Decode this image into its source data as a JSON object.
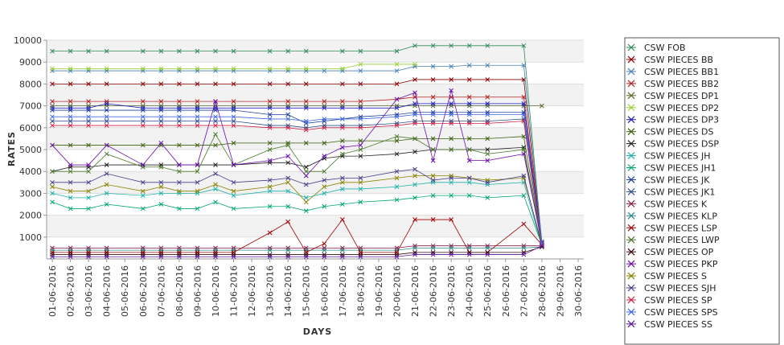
{
  "chart_data": {
    "type": "line",
    "title": "",
    "xlabel": "DAYS",
    "ylabel": "RATES",
    "ylim": [
      0,
      10000
    ],
    "yticks": [
      1000,
      2000,
      3000,
      4000,
      5000,
      6000,
      7000,
      8000,
      9000,
      10000
    ],
    "grid": "alternating horizontal bands",
    "legend": "right",
    "marker": "x",
    "x": [
      "01-06-2016",
      "02-06-2016",
      "03-06-2016",
      "04-06-2016",
      "05-06-2016",
      "06-06-2016",
      "07-06-2016",
      "08-06-2016",
      "09-06-2016",
      "10-06-2016",
      "11-06-2016",
      "12-06-2016",
      "13-06-2016",
      "14-06-2016",
      "15-06-2016",
      "16-06-2016",
      "17-06-2016",
      "18-06-2016",
      "19-06-2016",
      "20-06-2016",
      "21-06-2016",
      "22-06-2016",
      "23-06-2016",
      "24-06-2016",
      "25-06-2016",
      "26-06-2016",
      "27-06-2016",
      "28-06-2016",
      "29-06-2016",
      "30-06-2016"
    ],
    "series": [
      {
        "name": "CSW FOB",
        "color": "#2e8b57",
        "values": [
          9500,
          9500,
          9500,
          9500,
          null,
          9500,
          9500,
          9500,
          9500,
          9500,
          9500,
          null,
          9500,
          9500,
          9500,
          null,
          9500,
          9500,
          null,
          9500,
          9750,
          9750,
          9750,
          9750,
          9750,
          null,
          9750,
          700,
          null,
          null
        ]
      },
      {
        "name": "CSW PIECES BB",
        "color": "#8b0000",
        "values": [
          8000,
          8000,
          8000,
          8000,
          null,
          8000,
          8000,
          8000,
          8000,
          8000,
          8000,
          null,
          8000,
          8000,
          8000,
          null,
          8000,
          8000,
          null,
          8000,
          8200,
          8200,
          8200,
          8200,
          8200,
          null,
          8200,
          650,
          null,
          null
        ]
      },
      {
        "name": "CSW PIECES BB1",
        "color": "#4682b4",
        "values": [
          8600,
          8600,
          8600,
          8600,
          null,
          8600,
          8600,
          8600,
          8600,
          8600,
          8600,
          null,
          8600,
          8600,
          8600,
          8600,
          8600,
          8600,
          null,
          8600,
          8800,
          8800,
          8800,
          8850,
          8850,
          null,
          8850,
          800,
          null,
          null
        ]
      },
      {
        "name": "CSW PIECES BB2",
        "color": "#b22222",
        "values": [
          7200,
          7200,
          7200,
          7200,
          null,
          7200,
          7200,
          7200,
          7200,
          7200,
          7200,
          null,
          7200,
          7200,
          7200,
          7200,
          7200,
          7200,
          null,
          7300,
          7400,
          7400,
          7400,
          7400,
          7400,
          null,
          7400,
          700,
          null,
          null
        ]
      },
      {
        "name": "CSW PIECES DP1",
        "color": "#556b2f",
        "values": [
          7000,
          7000,
          7000,
          7000,
          null,
          7000,
          7000,
          7000,
          7000,
          7000,
          7000,
          null,
          7000,
          7000,
          7000,
          7000,
          7000,
          7000,
          null,
          7000,
          7000,
          7000,
          7000,
          7000,
          7000,
          null,
          7000,
          7000,
          null,
          null
        ]
      },
      {
        "name": "CSW PIECES DP2",
        "color": "#9acd32",
        "values": [
          8700,
          8700,
          8700,
          8700,
          null,
          8700,
          8700,
          8700,
          8700,
          8700,
          8700,
          null,
          8700,
          8700,
          8700,
          null,
          8700,
          8900,
          null,
          8900,
          8900,
          null,
          null,
          null,
          null,
          null,
          null,
          null,
          null,
          null
        ]
      },
      {
        "name": "CSW PIECES DP3",
        "color": "#2020c0",
        "values": [
          6900,
          6900,
          6900,
          7100,
          null,
          6900,
          6900,
          6900,
          6900,
          6900,
          6900,
          null,
          6900,
          6900,
          6900,
          6900,
          6900,
          6900,
          null,
          6900,
          7100,
          7100,
          7100,
          7100,
          7100,
          null,
          7100,
          600,
          null,
          null
        ]
      },
      {
        "name": "CSW PIECES DS",
        "color": "#3a5f0b",
        "values": [
          5200,
          5200,
          5200,
          5200,
          null,
          5200,
          5200,
          5200,
          5200,
          5200,
          5300,
          null,
          5300,
          5300,
          5300,
          5300,
          5400,
          5400,
          null,
          5400,
          5500,
          5500,
          5500,
          5500,
          5500,
          null,
          5600,
          700,
          null,
          null
        ]
      },
      {
        "name": "CSW PIECES DSP",
        "color": "#222222",
        "values": [
          4000,
          4200,
          4200,
          4300,
          null,
          4300,
          4300,
          4300,
          4300,
          4300,
          4300,
          null,
          4400,
          4400,
          4200,
          4600,
          4700,
          4700,
          null,
          4800,
          4900,
          5000,
          5000,
          5000,
          5000,
          null,
          5100,
          650,
          null,
          null
        ]
      },
      {
        "name": "CSW PIECES JH",
        "color": "#20b2aa",
        "values": [
          3000,
          2800,
          2800,
          3000,
          null,
          2900,
          3000,
          3000,
          3000,
          3200,
          2900,
          null,
          3100,
          3100,
          2800,
          3000,
          3200,
          3200,
          null,
          3300,
          3400,
          3500,
          3500,
          3500,
          3400,
          null,
          3500,
          600,
          null,
          null
        ]
      },
      {
        "name": "CSW PIECES JH1",
        "color": "#00a86b",
        "values": [
          2600,
          2300,
          2300,
          2500,
          null,
          2300,
          2500,
          2300,
          2300,
          2600,
          2300,
          null,
          2400,
          2400,
          2200,
          2400,
          2500,
          2600,
          null,
          2700,
          2800,
          2900,
          2900,
          2900,
          2800,
          null,
          2900,
          650,
          null,
          null
        ]
      },
      {
        "name": "CSW PIECES JK",
        "color": "#1f3fa0",
        "values": [
          6800,
          6800,
          6800,
          6800,
          null,
          6800,
          6800,
          6800,
          6800,
          6800,
          6800,
          null,
          6600,
          6600,
          6200,
          6300,
          6400,
          6500,
          null,
          6600,
          6700,
          6700,
          6700,
          6700,
          6700,
          null,
          6700,
          700,
          null,
          null
        ]
      },
      {
        "name": "CSW PIECES JK1",
        "color": "#2f4f8f",
        "values": [
          6300,
          6300,
          6300,
          6300,
          null,
          6300,
          6300,
          6300,
          6300,
          6300,
          6300,
          null,
          6100,
          6100,
          6000,
          6100,
          6100,
          6100,
          null,
          6200,
          6300,
          6300,
          6300,
          6300,
          6300,
          null,
          6400,
          600,
          null,
          null
        ]
      },
      {
        "name": "CSW PIECES K",
        "color": "#8b1a4a",
        "values": [
          500,
          500,
          500,
          500,
          null,
          500,
          500,
          500,
          500,
          500,
          500,
          null,
          500,
          500,
          500,
          500,
          500,
          500,
          null,
          500,
          600,
          600,
          600,
          600,
          600,
          null,
          600,
          600,
          null,
          null
        ]
      },
      {
        "name": "CSW PIECES KLP",
        "color": "#2e8b8b",
        "values": [
          400,
          400,
          400,
          400,
          null,
          400,
          400,
          400,
          400,
          400,
          400,
          null,
          400,
          400,
          400,
          400,
          400,
          400,
          null,
          400,
          500,
          500,
          500,
          500,
          500,
          null,
          500,
          550,
          null,
          null
        ]
      },
      {
        "name": "CSW PIECES LSP",
        "color": "#a00000",
        "values": [
          300,
          300,
          300,
          300,
          null,
          300,
          300,
          300,
          300,
          300,
          300,
          null,
          1200,
          1700,
          300,
          700,
          1800,
          300,
          null,
          300,
          1800,
          1800,
          1800,
          300,
          300,
          null,
          1600,
          650,
          null,
          null
        ]
      },
      {
        "name": "CSW PIECES LWP",
        "color": "#4a7a2a",
        "values": [
          4000,
          4000,
          4000,
          4800,
          null,
          4200,
          4200,
          4000,
          4000,
          5700,
          4300,
          null,
          5000,
          5200,
          4000,
          4000,
          4800,
          5000,
          null,
          5600,
          5500,
          5000,
          5000,
          5000,
          4800,
          null,
          5000,
          700,
          null,
          null
        ]
      },
      {
        "name": "CSW PIECES OP",
        "color": "#3b0a0a",
        "values": [
          200,
          200,
          200,
          200,
          null,
          200,
          200,
          200,
          200,
          200,
          200,
          null,
          200,
          200,
          200,
          200,
          200,
          200,
          null,
          200,
          300,
          300,
          300,
          300,
          300,
          null,
          300,
          550,
          null,
          null
        ]
      },
      {
        "name": "CSW PIECES PKP",
        "color": "#6a0dad",
        "values": [
          5200,
          4300,
          4300,
          5200,
          null,
          4300,
          5300,
          4300,
          4300,
          7200,
          4300,
          null,
          4500,
          4700,
          3800,
          4700,
          5100,
          5200,
          null,
          7300,
          7600,
          4500,
          7700,
          4500,
          4500,
          null,
          4800,
          750,
          null,
          null
        ]
      },
      {
        "name": "CSW PIECES S",
        "color": "#8b8000",
        "values": [
          3300,
          3100,
          3100,
          3400,
          null,
          3100,
          3300,
          3100,
          3100,
          3400,
          3100,
          null,
          3300,
          3500,
          2600,
          3300,
          3500,
          3500,
          null,
          3700,
          3800,
          3800,
          3800,
          3700,
          3600,
          null,
          3700,
          700,
          null,
          null
        ]
      },
      {
        "name": "CSW PIECES SJH",
        "color": "#483d8b",
        "values": [
          3500,
          3500,
          3500,
          3900,
          null,
          3500,
          3500,
          3500,
          3500,
          3900,
          3500,
          null,
          3600,
          3700,
          3400,
          3600,
          3700,
          3700,
          null,
          4000,
          4100,
          3600,
          3700,
          3700,
          3500,
          null,
          3800,
          600,
          null,
          null
        ]
      },
      {
        "name": "CSW PIECES SP",
        "color": "#cc2244",
        "values": [
          6100,
          6100,
          6100,
          6100,
          null,
          6100,
          6100,
          6100,
          6100,
          6100,
          6100,
          null,
          6000,
          6000,
          5900,
          6000,
          6000,
          6000,
          null,
          6100,
          6200,
          6200,
          6200,
          6200,
          6200,
          null,
          6300,
          650,
          null,
          null
        ]
      },
      {
        "name": "CSW PIECES SPS",
        "color": "#4169e1",
        "values": [
          6500,
          6500,
          6500,
          6500,
          null,
          6500,
          6500,
          6500,
          6500,
          6500,
          6500,
          null,
          6400,
          6400,
          6300,
          6400,
          6400,
          6400,
          null,
          6500,
          6600,
          6600,
          6600,
          6600,
          6600,
          null,
          6600,
          700,
          null,
          null
        ]
      },
      {
        "name": "CSW PIECES SS",
        "color": "#5a189a",
        "values": [
          100,
          100,
          100,
          100,
          null,
          100,
          100,
          100,
          100,
          100,
          100,
          null,
          100,
          100,
          100,
          100,
          100,
          100,
          null,
          100,
          200,
          200,
          200,
          200,
          200,
          null,
          200,
          600,
          null,
          null
        ]
      }
    ]
  }
}
